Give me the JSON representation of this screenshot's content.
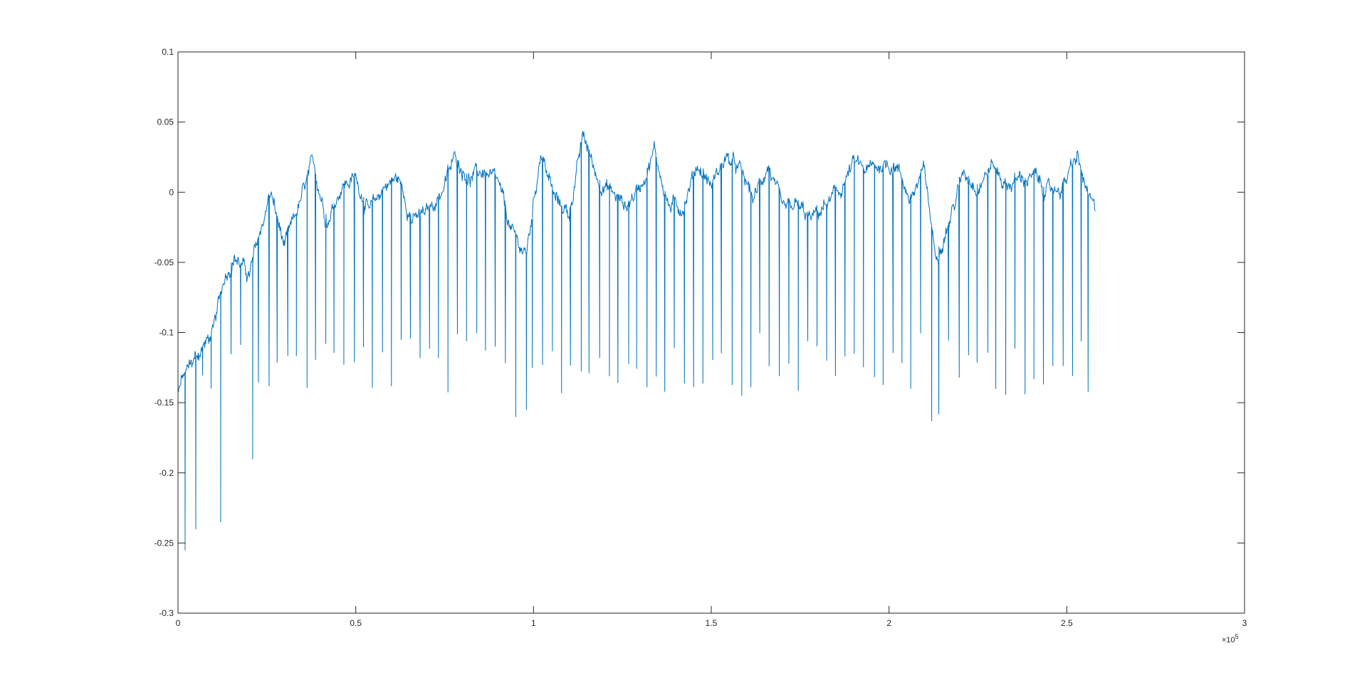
{
  "chart_data": {
    "type": "line",
    "title": "",
    "xlabel": "",
    "ylabel": "",
    "xlim": [
      0,
      300000
    ],
    "ylim": [
      -0.3,
      0.1
    ],
    "x_exponent_label": "×10^5",
    "x_exponent_base": "×10",
    "x_exponent_power": "5",
    "grid": false,
    "legend": "none",
    "line_color": "#0072BD",
    "x_ticks": [
      {
        "value": 0,
        "label": "0"
      },
      {
        "value": 50000,
        "label": "0.5"
      },
      {
        "value": 100000,
        "label": "1"
      },
      {
        "value": 150000,
        "label": "1.5"
      },
      {
        "value": 200000,
        "label": "2"
      },
      {
        "value": 250000,
        "label": "2.5"
      },
      {
        "value": 300000,
        "label": "3"
      }
    ],
    "y_ticks": [
      {
        "value": 0.1,
        "label": "0.1"
      },
      {
        "value": 0.05,
        "label": "0.05"
      },
      {
        "value": 0,
        "label": "0"
      },
      {
        "value": -0.05,
        "label": "-0.05"
      },
      {
        "value": -0.1,
        "label": "-0.1"
      },
      {
        "value": -0.15,
        "label": "-0.15"
      },
      {
        "value": -0.2,
        "label": "-0.2"
      },
      {
        "value": -0.25,
        "label": "-0.25"
      },
      {
        "value": -0.3,
        "label": "-0.3"
      }
    ],
    "series": [
      {
        "x_start": 0,
        "x_end": 258000,
        "envelope_x": [
          0,
          3000,
          7000,
          10000,
          13000,
          16000,
          20000,
          23000,
          26000,
          30000,
          34000,
          38000,
          42000,
          46000,
          50000,
          54000,
          58000,
          62000,
          66000,
          70000,
          74000,
          78000,
          82000,
          86000,
          90000,
          94000,
          98000,
          102000,
          106000,
          110000,
          114000,
          118000,
          122000,
          126000,
          130000,
          134000,
          138000,
          142000,
          146000,
          150000,
          154000,
          158000,
          162000,
          166000,
          170000,
          174000,
          178000,
          182000,
          186000,
          190000,
          194000,
          198000,
          202000,
          206000,
          210000,
          213000,
          217000,
          221000,
          225000,
          229000,
          233000,
          237000,
          241000,
          245000,
          249000,
          253000,
          256000,
          258000
        ],
        "envelope_y": [
          -0.14,
          -0.125,
          -0.11,
          -0.1,
          -0.06,
          -0.045,
          -0.06,
          -0.03,
          0.0,
          -0.04,
          -0.01,
          0.02,
          -0.02,
          0.005,
          0.01,
          -0.015,
          0.005,
          0.01,
          -0.02,
          -0.015,
          0.0,
          0.025,
          0.01,
          0.015,
          0.005,
          -0.03,
          -0.045,
          0.03,
          -0.005,
          -0.015,
          0.04,
          0.01,
          0.0,
          -0.01,
          0.005,
          0.03,
          -0.01,
          -0.01,
          0.02,
          0.005,
          0.025,
          0.015,
          -0.005,
          0.02,
          -0.015,
          -0.01,
          -0.02,
          -0.01,
          0.0,
          0.02,
          0.015,
          0.02,
          0.02,
          -0.005,
          0.015,
          -0.045,
          -0.02,
          0.015,
          0.005,
          0.02,
          0.005,
          0.01,
          0.01,
          0.0,
          0.005,
          0.025,
          -0.005,
          -0.015
        ],
        "spike_min_x": [
          500,
          1000,
          2000,
          5000,
          12000,
          20000,
          21000,
          95000,
          98000,
          212000,
          214000,
          256000
        ],
        "spike_min_y": [
          -0.25,
          -0.26,
          -0.255,
          -0.24,
          -0.235,
          -0.2,
          -0.19,
          -0.16,
          -0.155,
          -0.163,
          -0.158,
          -0.142
        ],
        "spike_base_min": -0.1,
        "spike_base_max": -0.145,
        "spike_count": 97,
        "noise_amplitude": 0.006
      }
    ]
  }
}
